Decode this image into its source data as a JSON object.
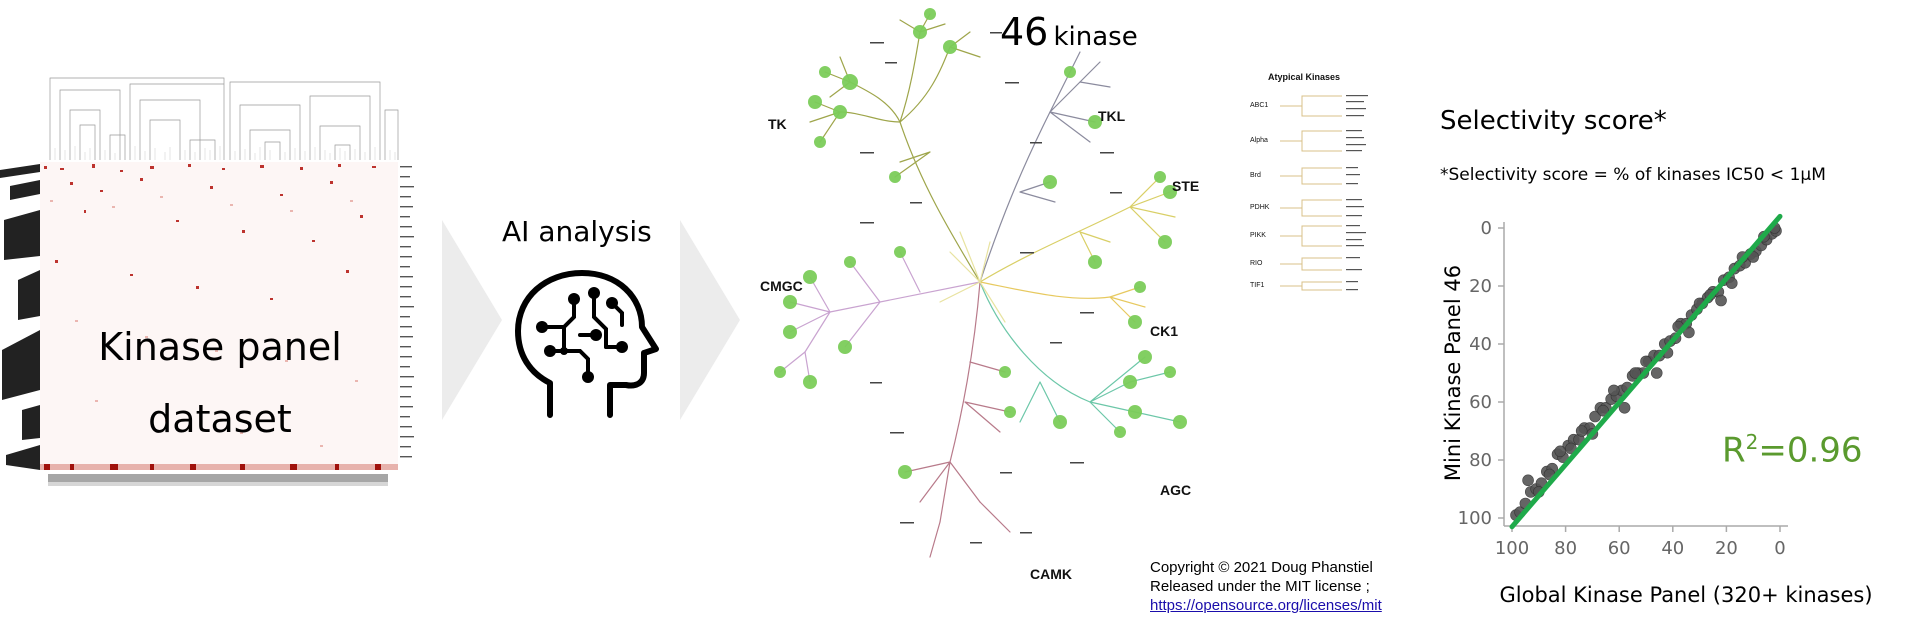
{
  "panel1": {
    "title_line1": "Kinase panel",
    "title_line2": "dataset"
  },
  "panel2": {
    "label": "AI analysis",
    "icon": "brain-circuit-head-icon"
  },
  "panel3": {
    "title_num": "46",
    "title_word": "kinase",
    "families": [
      "TK",
      "TKL",
      "STE",
      "CK1",
      "AGC",
      "CAMK",
      "CMGC"
    ],
    "atypical": {
      "title": "Atypical Kinases",
      "groups": [
        "ABC1",
        "Alpha",
        "Brd",
        "PDHK",
        "PIKK",
        "RIO",
        "TIF1"
      ]
    },
    "copyright": {
      "line1": "Copyright © 2021 Doug Phanstiel",
      "line2": "Released under the MIT license ;",
      "link": "https://opensource.org/licenses/mit"
    },
    "colors": {
      "highlight": "#7ccd5a",
      "TK": "#9ea54a",
      "TKL": "#8b8b9e",
      "STE": "#d9cf66",
      "CK1": "#e7c95f",
      "AGC": "#6cc7a8",
      "CAMK": "#b87a8a",
      "CMGC": "#c9a3d0"
    }
  },
  "panel4": {
    "title": "Selectivity score*",
    "subtitle": "*Selectivity score = % of kinases IC50 < 1μM",
    "r2_prefix": "R",
    "r2_sup": "2",
    "r2_value": "=0.96",
    "r2_color": "#5a9a2e",
    "fit_color": "#1faa4a",
    "point_color": "#555555"
  },
  "chart_data": {
    "type": "scatter",
    "title": "",
    "xlabel": "Global Kinase Panel (320+ kinases)",
    "ylabel": "Mini Kinase Panel 46",
    "xlim": [
      100,
      0
    ],
    "ylim": [
      0,
      100
    ],
    "xticks": [
      "100",
      "80",
      "60",
      "40",
      "20",
      "0"
    ],
    "yticks": [
      "0",
      "20",
      "40",
      "60",
      "80",
      "100"
    ],
    "fit_line": {
      "x": [
        100,
        0
      ],
      "y": [
        103,
        -4
      ]
    },
    "points": {
      "x": [
        98.5,
        97,
        95,
        93,
        91,
        89,
        87,
        85,
        83,
        81,
        79,
        77,
        75,
        73,
        71,
        69,
        67,
        65,
        63,
        61,
        59,
        57,
        55,
        53,
        51,
        49,
        47,
        45,
        43,
        41,
        39,
        37,
        35,
        33,
        31,
        29,
        27,
        25,
        23,
        21,
        19,
        17,
        15,
        13,
        11,
        9,
        7,
        5,
        3,
        1.5,
        94,
        86,
        78,
        70,
        62,
        54,
        46,
        38,
        30,
        22,
        14,
        6,
        90,
        82,
        74,
        66,
        58,
        50,
        42,
        34,
        26,
        18,
        10,
        2
      ],
      "y": [
        99,
        98,
        95,
        91,
        90,
        88,
        84,
        83,
        78,
        79,
        75,
        73,
        73,
        69,
        69,
        65,
        62,
        62,
        59,
        58,
        56,
        55,
        51,
        50,
        50,
        46,
        44,
        44,
        40,
        39,
        38,
        33,
        33,
        30,
        28,
        26,
        24,
        22,
        22,
        18,
        17,
        14,
        13,
        12,
        9,
        8,
        6,
        4,
        2,
        1,
        87,
        85,
        76,
        71,
        56,
        50,
        50,
        34,
        26,
        25,
        10,
        3,
        91,
        77,
        70,
        63,
        62,
        46,
        43,
        36,
        23,
        19,
        10,
        0
      ]
    }
  }
}
